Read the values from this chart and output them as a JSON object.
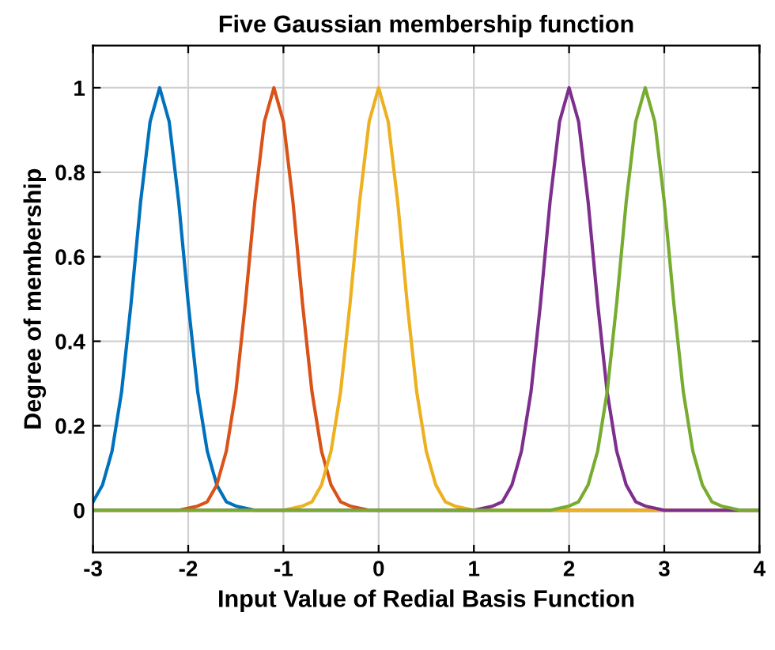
{
  "chart_data": {
    "type": "line",
    "title": "Five Gaussian membership function",
    "xlabel": "Input Value of Redial Basis Function",
    "ylabel": "Degree of membership",
    "xlim": [
      -3,
      4
    ],
    "xticks": [
      -3,
      -2,
      -1,
      0,
      1,
      2,
      3,
      4
    ],
    "ylim": [
      -0.1,
      1.1
    ],
    "yticks": [
      0,
      0.2,
      0.4,
      0.6,
      0.8,
      1
    ],
    "grid": true,
    "marker": "none",
    "line_style": "solid",
    "series": [
      {
        "color": "#0072bd",
        "x": [
          -3,
          -2.9,
          -2.8,
          -2.7,
          -2.6,
          -2.5,
          -2.4,
          -2.3,
          -2.2,
          -2.1,
          -2.0,
          -1.9,
          -1.8,
          -1.7,
          -1.6,
          -1.5,
          -1.3,
          4
        ],
        "values": [
          0.02,
          0.06,
          0.14,
          0.28,
          0.49,
          0.73,
          0.92,
          1,
          0.92,
          0.73,
          0.49,
          0.28,
          0.14,
          0.06,
          0.02,
          0.01,
          0,
          0
        ]
      },
      {
        "color": "#d95319",
        "x": [
          -3,
          -2.1,
          -1.9,
          -1.8,
          -1.7,
          -1.6,
          -1.5,
          -1.4,
          -1.3,
          -1.2,
          -1.1,
          -1.0,
          -0.9,
          -0.8,
          -0.7,
          -0.6,
          -0.5,
          -0.4,
          -0.3,
          -0.1,
          4
        ],
        "values": [
          0,
          0,
          0.01,
          0.02,
          0.06,
          0.14,
          0.28,
          0.49,
          0.73,
          0.92,
          1,
          0.92,
          0.73,
          0.49,
          0.28,
          0.14,
          0.06,
          0.02,
          0.01,
          0,
          0
        ]
      },
      {
        "color": "#edb120",
        "x": [
          -3,
          -1,
          -0.8,
          -0.7,
          -0.6,
          -0.5,
          -0.4,
          -0.3,
          -0.2,
          -0.1,
          0,
          0.1,
          0.2,
          0.3,
          0.4,
          0.5,
          0.6,
          0.7,
          0.8,
          1,
          4
        ],
        "values": [
          0,
          0,
          0.01,
          0.02,
          0.06,
          0.14,
          0.28,
          0.49,
          0.73,
          0.92,
          1,
          0.92,
          0.73,
          0.49,
          0.28,
          0.14,
          0.06,
          0.02,
          0.01,
          0,
          0
        ]
      },
      {
        "color": "#7e2f8e",
        "x": [
          -3,
          1,
          1.2,
          1.3,
          1.4,
          1.5,
          1.6,
          1.7,
          1.8,
          1.9,
          2,
          2.1,
          2.2,
          2.3,
          2.4,
          2.5,
          2.6,
          2.7,
          2.8,
          3,
          4
        ],
        "values": [
          0,
          0,
          0.01,
          0.02,
          0.06,
          0.14,
          0.28,
          0.49,
          0.73,
          0.92,
          1,
          0.92,
          0.73,
          0.49,
          0.28,
          0.14,
          0.06,
          0.02,
          0.01,
          0,
          0
        ]
      },
      {
        "color": "#77ac30",
        "x": [
          -3,
          1.8,
          2,
          2.1,
          2.2,
          2.3,
          2.4,
          2.5,
          2.6,
          2.7,
          2.8,
          2.9,
          3,
          3.1,
          3.2,
          3.3,
          3.4,
          3.5,
          3.6,
          3.8,
          4
        ],
        "values": [
          0,
          0,
          0.01,
          0.02,
          0.06,
          0.14,
          0.28,
          0.49,
          0.73,
          0.92,
          1,
          0.92,
          0.73,
          0.49,
          0.28,
          0.14,
          0.06,
          0.02,
          0.01,
          0,
          0
        ]
      }
    ]
  }
}
